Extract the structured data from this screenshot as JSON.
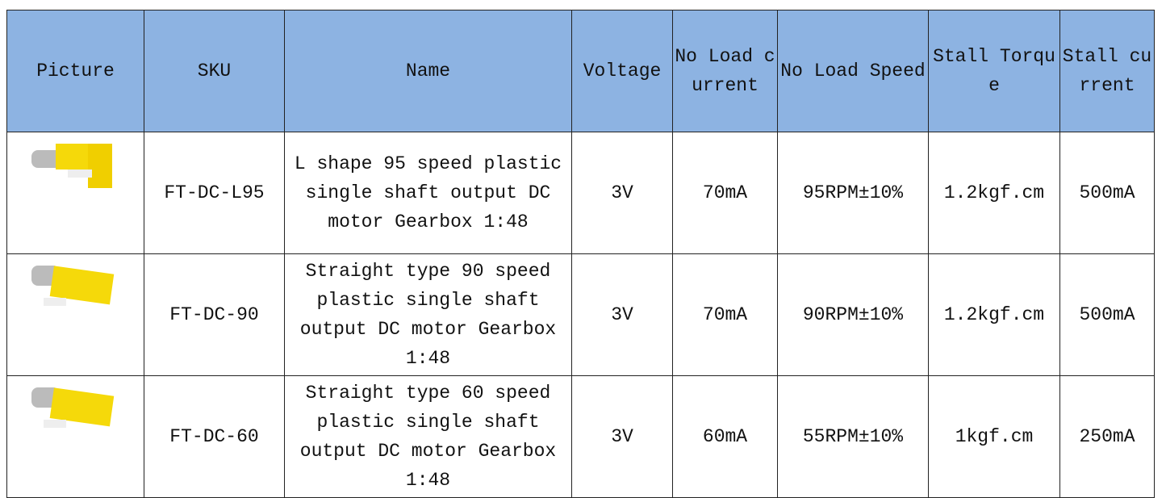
{
  "table": {
    "header": [
      "Picture",
      "SKU",
      "Name",
      "Voltage",
      "No Load current",
      "No Load Speed",
      "Stall Torque",
      "Stall current"
    ],
    "rows": [
      [
        "FT-DC-L95",
        "L shape 95 speed plastic single shaft output DC motor Gearbox 1:48",
        "3V",
        "70mA",
        "95RPM±10%",
        "1.2kgf.cm",
        "500mA"
      ],
      [
        "FT-DC-90",
        "Straight type 90 speed plastic single shaft output DC motor Gearbox 1:48",
        "3V",
        "70mA",
        "90RPM±10%",
        "1.2kgf.cm",
        "500mA"
      ],
      [
        "FT-DC-60",
        "Straight type 60 speed plastic single shaft output DC motor Gearbox 1:48",
        "3V",
        "60mA",
        "55RPM±10%",
        "1kgf.cm",
        "250mA"
      ]
    ]
  }
}
